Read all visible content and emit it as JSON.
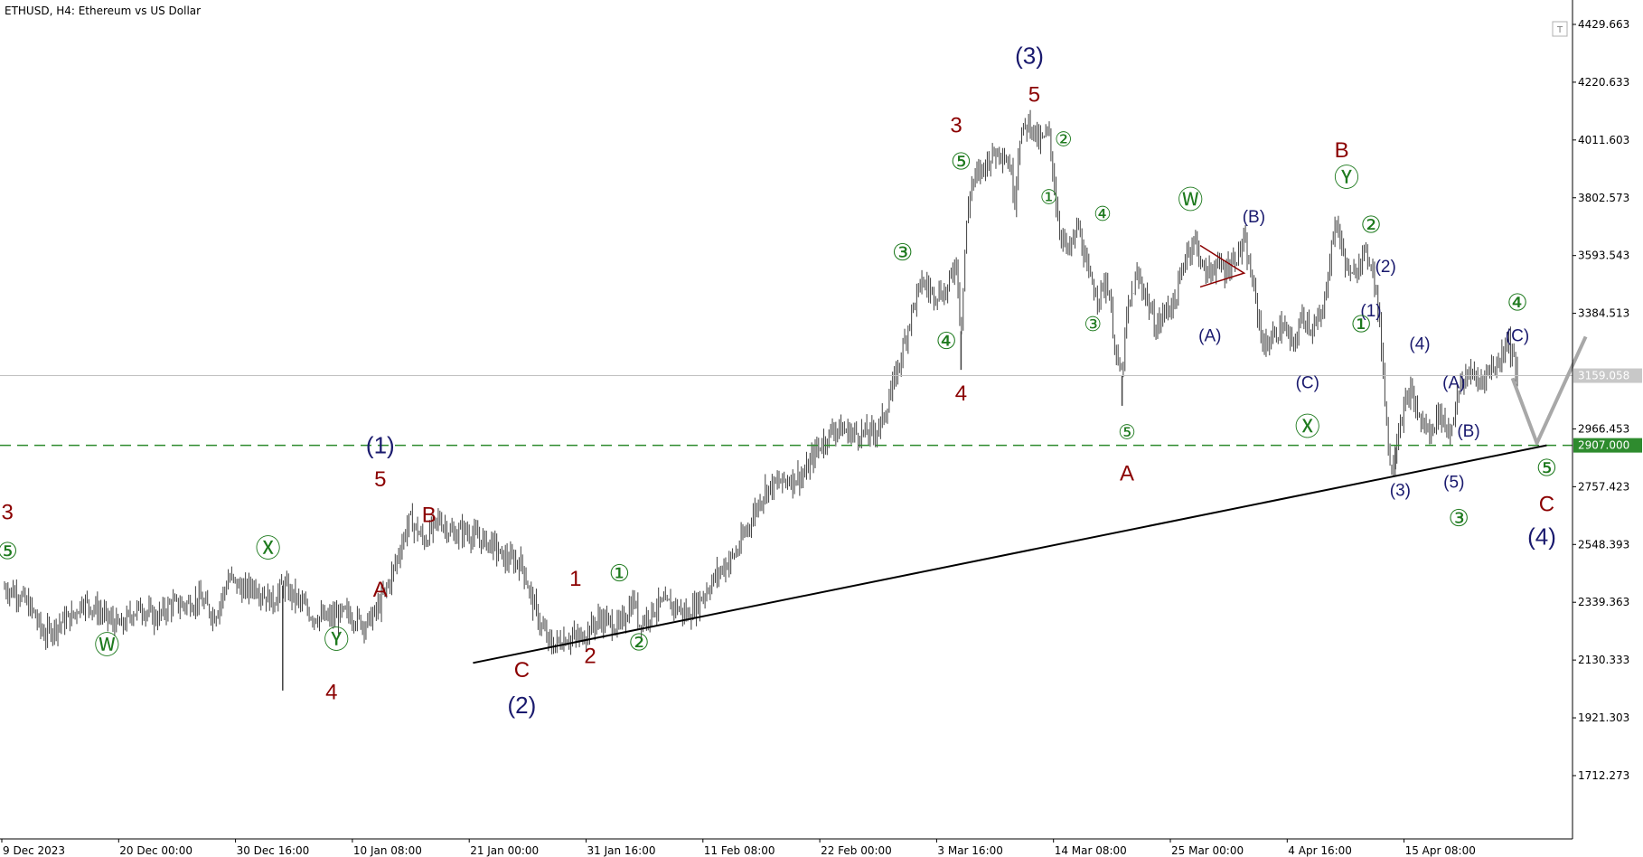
{
  "header": {
    "title": "ETHUSD, H4:  Ethereum vs US Dollar"
  },
  "price_axis": {
    "ticks": [
      "4429.663",
      "4220.633",
      "4011.603",
      "3802.573",
      "3593.543",
      "3384.513",
      "3159.058",
      "2966.453",
      "2907.000",
      "2757.423",
      "2548.393",
      "2339.363",
      "2130.333",
      "1921.303",
      "1712.273"
    ],
    "current_price": "3159.058",
    "level_price": "2907.000"
  },
  "time_axis": {
    "ticks": [
      "9 Dec 2023",
      "20 Dec 00:00",
      "30 Dec 16:00",
      "10 Jan 08:00",
      "21 Jan 00:00",
      "31 Jan 16:00",
      "11 Feb 08:00",
      "22 Feb 00:00",
      "3 Mar 16:00",
      "14 Mar 08:00",
      "25 Mar 00:00",
      "4 Apr 16:00",
      "15 Apr 08:00"
    ]
  },
  "colors": {
    "candles": "#404040",
    "navy": "#1a1a6e",
    "maroon": "#8b0000",
    "green": "#1e7a1e",
    "level": "#2e8b2e",
    "projection": "#a8a8a8",
    "trendline": "#000000"
  },
  "chart_data": {
    "type": "candlestick",
    "title": "ETHUSD, H4:  Ethereum vs US Dollar",
    "ylim": [
      1650,
      4480
    ],
    "x_range": [
      "9 Dec 2023",
      "27 Apr 2024"
    ],
    "horizontal_lines": [
      {
        "price": 3159.058,
        "style": "solid-gray"
      },
      {
        "price": 2907.0,
        "style": "dashed-green"
      }
    ],
    "path": [
      [
        0,
        2390
      ],
      [
        1.5,
        2370
      ],
      [
        3,
        2300
      ],
      [
        4,
        2220
      ],
      [
        5.5,
        2260
      ],
      [
        7,
        2290
      ],
      [
        8,
        2345
      ],
      [
        9.5,
        2310
      ],
      [
        11,
        2270
      ],
      [
        12,
        2250
      ],
      [
        13,
        2300
      ],
      [
        14,
        2320
      ],
      [
        15.5,
        2280
      ],
      [
        17,
        2330
      ],
      [
        18.5,
        2330
      ],
      [
        20,
        2350
      ],
      [
        21.5,
        2290
      ],
      [
        22,
        2330
      ],
      [
        23,
        2430
      ],
      [
        24.5,
        2380
      ],
      [
        25.5,
        2400
      ],
      [
        27.5,
        2340
      ],
      [
        28.5,
        2400
      ],
      [
        30.5,
        2330
      ],
      [
        31.5,
        2290
      ],
      [
        33,
        2280
      ],
      [
        35,
        2300
      ],
      [
        37,
        2260
      ],
      [
        38,
        2300
      ],
      [
        39.5,
        2420
      ],
      [
        40.5,
        2530
      ],
      [
        41.5,
        2640
      ],
      [
        43,
        2560
      ],
      [
        44.5,
        2640
      ],
      [
        46,
        2580
      ],
      [
        47,
        2600
      ],
      [
        48.5,
        2570
      ],
      [
        50,
        2550
      ],
      [
        51,
        2500
      ],
      [
        53,
        2480
      ],
      [
        54,
        2350
      ],
      [
        55,
        2250
      ],
      [
        56,
        2180
      ],
      [
        57.5,
        2210
      ],
      [
        59,
        2210
      ],
      [
        61,
        2280
      ],
      [
        63,
        2250
      ],
      [
        64.5,
        2350
      ],
      [
        65,
        2260
      ],
      [
        67,
        2330
      ],
      [
        68.5,
        2330
      ],
      [
        70,
        2290
      ],
      [
        71.5,
        2360
      ],
      [
        73,
        2440
      ],
      [
        75,
        2520
      ],
      [
        77,
        2680
      ],
      [
        78,
        2750
      ],
      [
        80,
        2780
      ],
      [
        82,
        2800
      ],
      [
        83,
        2880
      ],
      [
        85,
        2970
      ],
      [
        87,
        2950
      ],
      [
        89,
        2950
      ],
      [
        90,
        3000
      ],
      [
        91,
        3120
      ],
      [
        92,
        3250
      ],
      [
        93,
        3400
      ],
      [
        94,
        3500
      ],
      [
        95,
        3460
      ],
      [
        96.5,
        3460
      ],
      [
        97.5,
        3580
      ],
      [
        98,
        3320
      ],
      [
        98.5,
        3680
      ],
      [
        99,
        3850
      ],
      [
        100,
        3900
      ],
      [
        101,
        3950
      ],
      [
        102,
        3980
      ],
      [
        103,
        3920
      ],
      [
        103.5,
        3800
      ],
      [
        104,
        4020
      ],
      [
        105,
        4080
      ],
      [
        106,
        4000
      ],
      [
        107,
        4040
      ],
      [
        108,
        3700
      ],
      [
        109,
        3600
      ],
      [
        110,
        3700
      ],
      [
        111,
        3520
      ],
      [
        112,
        3450
      ],
      [
        113,
        3500
      ],
      [
        114,
        3200
      ],
      [
        114.5,
        3160
      ],
      [
        115,
        3380
      ],
      [
        116,
        3520
      ],
      [
        117,
        3450
      ],
      [
        117.5,
        3380
      ],
      [
        118,
        3330
      ],
      [
        119,
        3400
      ],
      [
        120,
        3430
      ],
      [
        121,
        3600
      ],
      [
        122,
        3650
      ],
      [
        123,
        3520
      ],
      [
        124,
        3560
      ],
      [
        125,
        3540
      ],
      [
        126,
        3580
      ],
      [
        127,
        3640
      ],
      [
        128,
        3470
      ],
      [
        129,
        3260
      ],
      [
        130,
        3300
      ],
      [
        131,
        3340
      ],
      [
        132,
        3260
      ],
      [
        133,
        3380
      ],
      [
        134,
        3330
      ],
      [
        135,
        3370
      ],
      [
        136,
        3640
      ],
      [
        136.5,
        3720
      ],
      [
        137,
        3620
      ],
      [
        138,
        3500
      ],
      [
        139,
        3600
      ],
      [
        140,
        3580
      ],
      [
        140.5,
        3470
      ],
      [
        141,
        3300
      ],
      [
        142,
        2800
      ],
      [
        143,
        3000
      ],
      [
        144,
        3100
      ],
      [
        145,
        3000
      ],
      [
        146,
        2950
      ],
      [
        147,
        3030
      ],
      [
        148,
        2950
      ],
      [
        149,
        3100
      ],
      [
        150,
        3180
      ],
      [
        151,
        3130
      ],
      [
        152,
        3180
      ],
      [
        153,
        3200
      ],
      [
        154,
        3300
      ],
      [
        155,
        3160
      ]
    ],
    "spikes": [
      {
        "x": 28.5,
        "low": 2020
      },
      {
        "x": 98,
        "low": 3180
      },
      {
        "x": 114.5,
        "low": 3050
      },
      {
        "x": 142.5,
        "low": 2820
      }
    ],
    "trendline": [
      [
        48,
        2120
      ],
      [
        158,
        2907
      ]
    ],
    "projection": [
      [
        154.5,
        3150
      ],
      [
        157,
        2915
      ],
      [
        162,
        3300
      ]
    ],
    "triangle": [
      [
        122.5,
        3630
      ],
      [
        127,
        3530
      ],
      [
        122.5,
        3480
      ]
    ],
    "waves": [
      {
        "text": "(3)",
        "x": 105,
        "p": 4310,
        "color": "navy",
        "size": 26
      },
      {
        "text": "5",
        "x": 105.5,
        "p": 4170,
        "color": "maroon",
        "size": 24
      },
      {
        "text": "3",
        "x": 97.5,
        "p": 4060,
        "color": "maroon",
        "size": 24
      },
      {
        "text": "4",
        "x": 98,
        "p": 3090,
        "color": "maroon",
        "size": 24
      },
      {
        "text": "(1)",
        "x": 38.5,
        "p": 2900,
        "color": "navy",
        "size": 26
      },
      {
        "text": "5",
        "x": 38.5,
        "p": 2780,
        "color": "maroon",
        "size": 24
      },
      {
        "text": "B",
        "x": 43.5,
        "p": 2650,
        "color": "maroon",
        "size": 24
      },
      {
        "text": "A",
        "x": 38.5,
        "p": 2380,
        "color": "maroon",
        "size": 24
      },
      {
        "text": "4",
        "x": 33.5,
        "p": 2010,
        "color": "maroon",
        "size": 24
      },
      {
        "text": "3",
        "x": 0.3,
        "p": 2660,
        "color": "maroon",
        "size": 24
      },
      {
        "text": "C",
        "x": 53,
        "p": 2090,
        "color": "maroon",
        "size": 24
      },
      {
        "text": "(2)",
        "x": 53,
        "p": 1960,
        "color": "navy",
        "size": 26
      },
      {
        "text": "1",
        "x": 58.5,
        "p": 2420,
        "color": "maroon",
        "size": 24
      },
      {
        "text": "2",
        "x": 60,
        "p": 2140,
        "color": "maroon",
        "size": 24
      },
      {
        "text": "A",
        "x": 115,
        "p": 2800,
        "color": "maroon",
        "size": 24
      },
      {
        "text": "B",
        "x": 137,
        "p": 3970,
        "color": "maroon",
        "size": 24
      },
      {
        "text": "C",
        "x": 158,
        "p": 2690,
        "color": "maroon",
        "size": 24
      },
      {
        "text": "(4)",
        "x": 157.5,
        "p": 2570,
        "color": "navy",
        "size": 26
      },
      {
        "text": "(A)",
        "x": 123.5,
        "p": 3300,
        "color": "navy",
        "size": 19
      },
      {
        "text": "(B)",
        "x": 128,
        "p": 3730,
        "color": "navy",
        "size": 19
      },
      {
        "text": "(C)",
        "x": 133.5,
        "p": 3130,
        "color": "navy",
        "size": 19
      },
      {
        "text": "(2)",
        "x": 141.5,
        "p": 3550,
        "color": "navy",
        "size": 19
      },
      {
        "text": "(1)",
        "x": 140,
        "p": 3390,
        "color": "navy",
        "size": 19
      },
      {
        "text": "(4)",
        "x": 145,
        "p": 3270,
        "color": "navy",
        "size": 19
      },
      {
        "text": "(3)",
        "x": 143,
        "p": 2740,
        "color": "navy",
        "size": 19
      },
      {
        "text": "(A)",
        "x": 148.5,
        "p": 3130,
        "color": "navy",
        "size": 19
      },
      {
        "text": "(B)",
        "x": 150,
        "p": 2955,
        "color": "navy",
        "size": 19
      },
      {
        "text": "(5)",
        "x": 148.5,
        "p": 2770,
        "color": "navy",
        "size": 19
      },
      {
        "text": "(C)",
        "x": 155,
        "p": 3300,
        "color": "navy",
        "size": 19
      }
    ],
    "circled_waves": [
      {
        "text": "⑤",
        "x": 0.3,
        "p": 2520,
        "size": 26
      },
      {
        "text": "Ⓦ",
        "x": 10.5,
        "p": 2180,
        "size": 28
      },
      {
        "text": "Ⓧ",
        "x": 27,
        "p": 2530,
        "size": 28
      },
      {
        "text": "Ⓨ",
        "x": 34,
        "p": 2200,
        "size": 28
      },
      {
        "text": "①",
        "x": 63,
        "p": 2440,
        "size": 26
      },
      {
        "text": "②",
        "x": 65,
        "p": 2190,
        "size": 26
      },
      {
        "text": "③",
        "x": 92,
        "p": 3600,
        "size": 26
      },
      {
        "text": "④",
        "x": 96.5,
        "p": 3280,
        "size": 26
      },
      {
        "text": "⑤",
        "x": 98,
        "p": 3930,
        "size": 26
      },
      {
        "text": "①",
        "x": 107,
        "p": 3800,
        "size": 22
      },
      {
        "text": "②",
        "x": 108.5,
        "p": 4010,
        "size": 22
      },
      {
        "text": "③",
        "x": 111.5,
        "p": 3340,
        "size": 22
      },
      {
        "text": "④",
        "x": 112.5,
        "p": 3740,
        "size": 22
      },
      {
        "text": "⑤",
        "x": 115,
        "p": 2950,
        "size": 22
      },
      {
        "text": "Ⓦ",
        "x": 121.5,
        "p": 3790,
        "size": 28
      },
      {
        "text": "Ⓧ",
        "x": 133.5,
        "p": 2970,
        "size": 28
      },
      {
        "text": "Ⓨ",
        "x": 137.5,
        "p": 3870,
        "size": 28
      },
      {
        "text": "②",
        "x": 140,
        "p": 3700,
        "size": 26
      },
      {
        "text": "①",
        "x": 139,
        "p": 3340,
        "size": 26
      },
      {
        "text": "③",
        "x": 149,
        "p": 2640,
        "size": 26
      },
      {
        "text": "④",
        "x": 155,
        "p": 3420,
        "size": 26
      },
      {
        "text": "⑤",
        "x": 158,
        "p": 2820,
        "size": 26
      }
    ]
  }
}
